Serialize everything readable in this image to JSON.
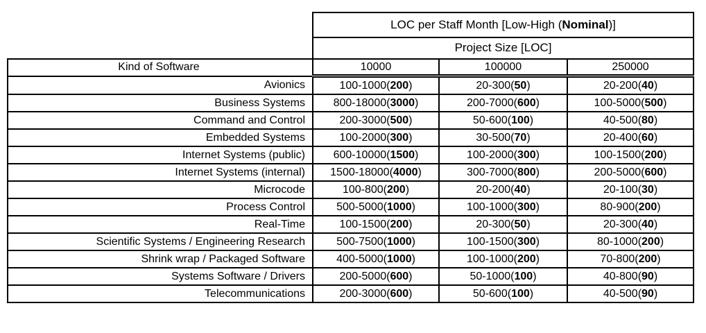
{
  "colors": {
    "background": "#ffffff",
    "border": "#000000",
    "text": "#000000"
  },
  "chart_data": {
    "type": "table",
    "title": {
      "prefix": "LOC per Staff Month [Low-High (",
      "bold": "Nominal",
      "suffix": ")]"
    },
    "subtitle": "Project Size [LOC]",
    "row_header": "Kind of Software",
    "columns": [
      "10000",
      "100000",
      "250000"
    ],
    "cell_format": "low-high(nominal)",
    "rows": [
      {
        "kind": "Avionics",
        "values": [
          {
            "low_high": "100-1000",
            "nominal": "200"
          },
          {
            "low_high": "20-300",
            "nominal": "50"
          },
          {
            "low_high": "20-200",
            "nominal": "40"
          }
        ]
      },
      {
        "kind": "Business Systems",
        "values": [
          {
            "low_high": "800-18000",
            "nominal": "3000"
          },
          {
            "low_high": "200-7000",
            "nominal": "600"
          },
          {
            "low_high": "100-5000",
            "nominal": "500"
          }
        ]
      },
      {
        "kind": "Command and Control",
        "values": [
          {
            "low_high": "200-3000",
            "nominal": "500"
          },
          {
            "low_high": "50-600",
            "nominal": "100"
          },
          {
            "low_high": "40-500",
            "nominal": "80"
          }
        ]
      },
      {
        "kind": "Embedded Systems",
        "values": [
          {
            "low_high": "100-2000",
            "nominal": "300"
          },
          {
            "low_high": "30-500",
            "nominal": "70"
          },
          {
            "low_high": "20-400",
            "nominal": "60"
          }
        ]
      },
      {
        "kind": "Internet Systems (public)",
        "values": [
          {
            "low_high": "600-10000",
            "nominal": "1500"
          },
          {
            "low_high": "100-2000",
            "nominal": "300"
          },
          {
            "low_high": "100-1500",
            "nominal": "200"
          }
        ]
      },
      {
        "kind": "Internet Systems (internal)",
        "values": [
          {
            "low_high": "1500-18000",
            "nominal": "4000"
          },
          {
            "low_high": "300-7000",
            "nominal": "800"
          },
          {
            "low_high": "200-5000",
            "nominal": "600"
          }
        ]
      },
      {
        "kind": "Microcode",
        "values": [
          {
            "low_high": "100-800",
            "nominal": "200"
          },
          {
            "low_high": "20-200",
            "nominal": "40"
          },
          {
            "low_high": "20-100",
            "nominal": "30"
          }
        ]
      },
      {
        "kind": "Process Control",
        "values": [
          {
            "low_high": "500-5000",
            "nominal": "1000"
          },
          {
            "low_high": "100-1000",
            "nominal": "300"
          },
          {
            "low_high": "80-900",
            "nominal": "200"
          }
        ]
      },
      {
        "kind": "Real-Time",
        "values": [
          {
            "low_high": "100-1500",
            "nominal": "200"
          },
          {
            "low_high": "20-300",
            "nominal": "50"
          },
          {
            "low_high": "20-300",
            "nominal": "40"
          }
        ]
      },
      {
        "kind": "Scientific Systems / Engineering Research",
        "values": [
          {
            "low_high": "500-7500",
            "nominal": "1000"
          },
          {
            "low_high": "100-1500",
            "nominal": "300"
          },
          {
            "low_high": "80-1000",
            "nominal": "200"
          }
        ]
      },
      {
        "kind": "Shrink wrap / Packaged Software",
        "values": [
          {
            "low_high": "400-5000",
            "nominal": "1000"
          },
          {
            "low_high": "100-1000",
            "nominal": "200"
          },
          {
            "low_high": "70-800",
            "nominal": "200"
          }
        ]
      },
      {
        "kind": "Systems Software / Drivers",
        "values": [
          {
            "low_high": "200-5000",
            "nominal": "600"
          },
          {
            "low_high": "50-1000",
            "nominal": "100"
          },
          {
            "low_high": "40-800",
            "nominal": "90"
          }
        ]
      },
      {
        "kind": "Telecommunications",
        "values": [
          {
            "low_high": "200-3000",
            "nominal": "600"
          },
          {
            "low_high": "50-600",
            "nominal": "100"
          },
          {
            "low_high": "40-500",
            "nominal": "90"
          }
        ]
      }
    ]
  }
}
